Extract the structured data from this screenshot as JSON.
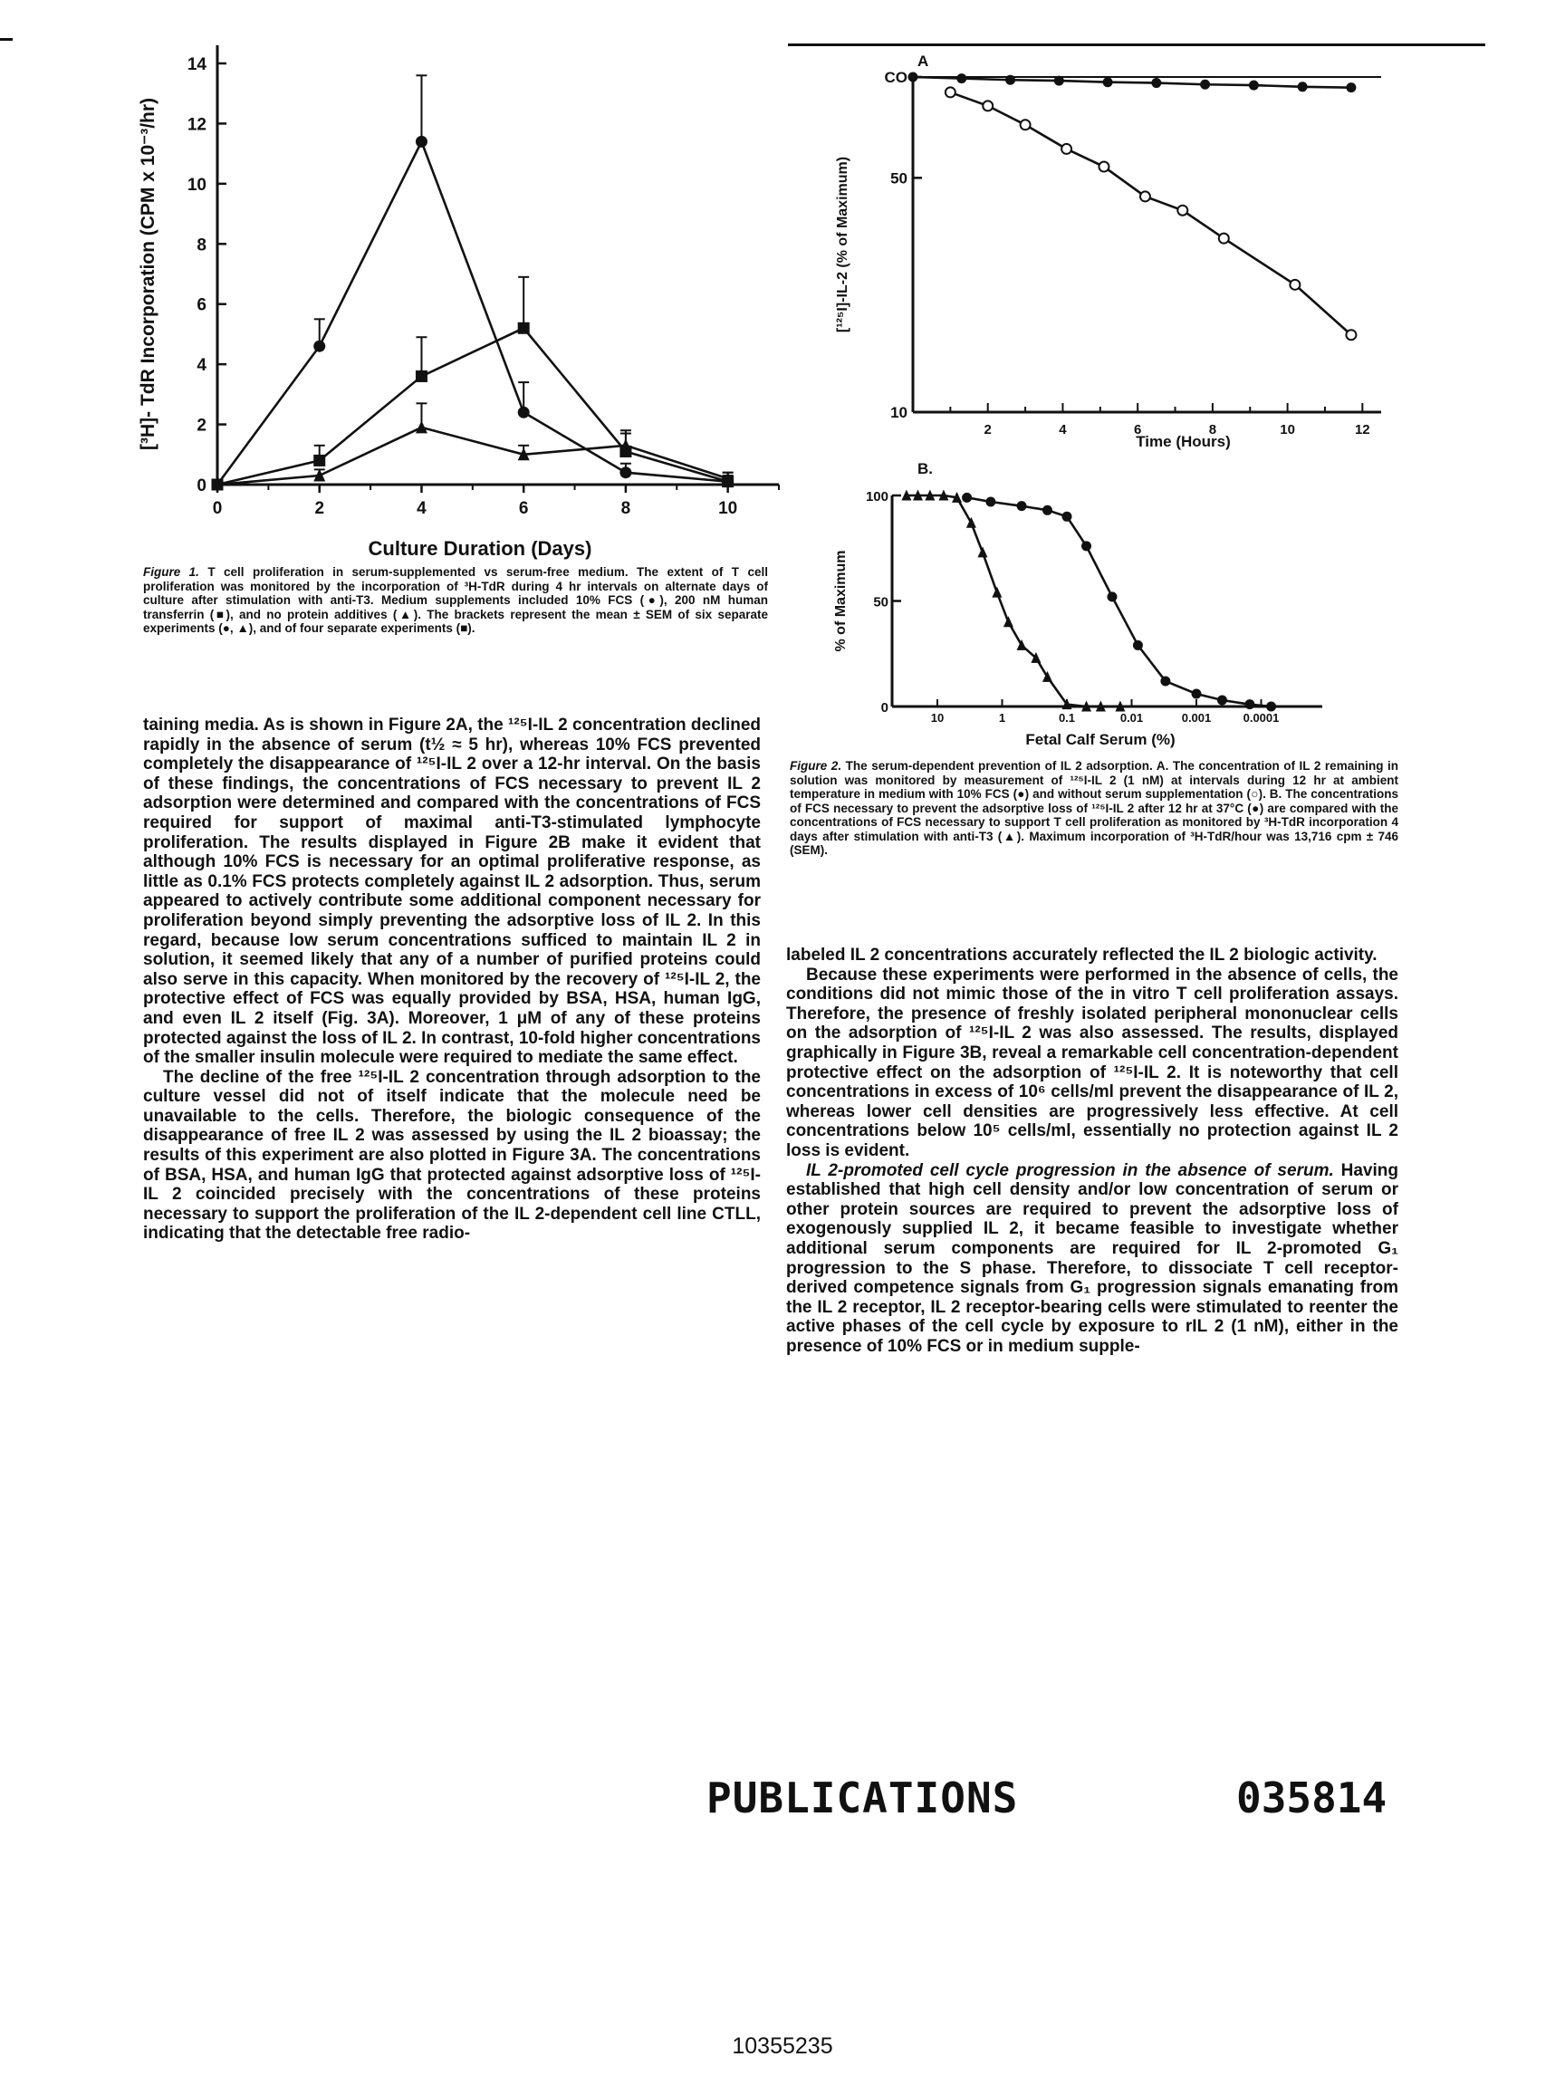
{
  "figure1": {
    "chart_data": {
      "type": "line",
      "xlabel": "Culture Duration (Days)",
      "ylabel": "[³H]- TdR Incorporation (CPM x 10⁻³/hr)",
      "xlim": [
        0,
        11
      ],
      "ylim": [
        0,
        14
      ],
      "x_ticks": [
        "0",
        "2",
        "4",
        "6",
        "8",
        "10"
      ],
      "y_ticks": [
        "0",
        "2",
        "4",
        "6",
        "8",
        "10",
        "12",
        "14"
      ],
      "series": [
        {
          "marker": "filled-circle",
          "x": [
            0,
            2,
            4,
            6,
            8,
            10
          ],
          "y": [
            0,
            4.6,
            11.4,
            2.4,
            0.4,
            0.1
          ],
          "err": [
            0,
            0.9,
            2.2,
            1.0,
            0.3,
            0.3
          ]
        },
        {
          "marker": "filled-square",
          "x": [
            0,
            2,
            4,
            6,
            8,
            10
          ],
          "y": [
            0,
            0.8,
            3.6,
            5.2,
            1.1,
            0.1
          ],
          "err": [
            0,
            0.5,
            1.3,
            1.7,
            0.6,
            0.2
          ]
        },
        {
          "marker": "filled-triangle",
          "x": [
            0,
            2,
            4,
            6,
            8,
            10
          ],
          "y": [
            0,
            0.3,
            1.9,
            1.0,
            1.3,
            0.2
          ],
          "err": [
            0,
            0.2,
            0.8,
            0.3,
            0.5,
            0.2
          ]
        }
      ]
    },
    "caption_label": "Figure 1.",
    "caption_text": "T cell proliferation in serum-supplemented vs serum-free medium. The extent of T cell proliferation was monitored by the incorporation of ³H-TdR during 4 hr intervals on alternate days of culture after stimulation with anti-T3. Medium supplements included 10% FCS (●), 200 nM human transferrin (■), and no protein additives (▲). The brackets represent the mean ± SEM of six separate experiments (●, ▲), and of four separate experiments (■)."
  },
  "figure2a": {
    "chart_data": {
      "type": "line",
      "panel_label": "A",
      "xlabel": "Time (Hours)",
      "ylabel": "[¹²⁵I]-IL-2 (% of Maximum)",
      "yscale": "log",
      "xlim": [
        0,
        12.5
      ],
      "ylim": [
        10,
        100
      ],
      "x_ticks": [
        "2",
        "4",
        "6",
        "8",
        "10",
        "12"
      ],
      "y_ticks": [
        "10",
        "50",
        "CO"
      ],
      "series": [
        {
          "marker": "filled-circle",
          "x": [
            0,
            1.3,
            2.6,
            3.9,
            5.2,
            6.5,
            7.8,
            9.1,
            10.4,
            11.7
          ],
          "y": [
            100,
            99,
            98,
            97.5,
            96.5,
            96,
            95,
            94.5,
            93.5,
            93
          ]
        },
        {
          "marker": "open-circle",
          "x": [
            1,
            2,
            3,
            4.1,
            5.1,
            6.2,
            7.2,
            8.3,
            10.2,
            11.7
          ],
          "y": [
            90,
            82,
            72,
            61,
            54,
            44,
            40,
            33,
            24,
            17
          ]
        }
      ]
    }
  },
  "figure2b": {
    "chart_data": {
      "type": "line",
      "panel_label": "B.",
      "xlabel": "Fetal Calf Serum (%)",
      "ylabel": "% of Maximum",
      "xscale": "log-reversed",
      "ylim": [
        0,
        100
      ],
      "x_ticks": [
        "10",
        "1",
        "0.1",
        "0.01",
        "0.001",
        "0.0001"
      ],
      "y_ticks": [
        "0",
        "50",
        "100"
      ],
      "series": [
        {
          "marker": "filled-triangle",
          "x": [
            30,
            20,
            13,
            8,
            5,
            3,
            2,
            1.2,
            0.8,
            0.5,
            0.3,
            0.2,
            0.1,
            0.05,
            0.03,
            0.015
          ],
          "y": [
            100,
            100,
            100,
            100,
            99,
            87,
            73,
            54,
            40,
            29,
            23,
            14,
            1,
            0,
            0,
            0
          ]
        },
        {
          "marker": "filled-circle",
          "x": [
            3.5,
            1.5,
            0.5,
            0.2,
            0.1,
            0.05,
            0.02,
            0.008,
            0.003,
            0.001,
            0.0004,
            0.00015,
            7e-05
          ],
          "y": [
            99,
            97,
            95,
            93,
            90,
            76,
            52,
            29,
            12,
            6,
            3,
            1,
            0
          ]
        }
      ]
    },
    "caption_label": "Figure 2.",
    "caption_text": "The serum-dependent prevention of IL 2 adsorption. A. The concentration of IL 2 remaining in solution was monitored by measurement of ¹²⁵I-IL 2 (1 nM) at intervals during 12 hr at ambient temperature in medium with 10% FCS (●) and without serum supplementation (○). B. The concentrations of FCS necessary to prevent the adsorptive loss of ¹²⁵I-IL 2 after 12 hr at 37°C (●) are compared with the concentrations of FCS necessary to support T cell proliferation as monitored by ³H-TdR incorporation 4 days after stimulation with anti-T3 (▲). Maximum incorporation of ³H-TdR/hour was 13,716 cpm ± 746 (SEM)."
  },
  "left_column": {
    "p1": "taining media. As is shown in Figure 2A, the ¹²⁵I-IL 2 concentration declined rapidly in the absence of serum (t½ ≈ 5 hr), whereas 10% FCS prevented completely the disappearance of ¹²⁵I-IL 2 over a 12-hr interval. On the basis of these findings, the concentrations of FCS necessary to prevent IL 2 adsorption were determined and compared with the concentrations of FCS required for support of maximal anti-T3-stimulated lymphocyte proliferation. The results displayed in Figure 2B make it evident that although 10% FCS is necessary for an optimal proliferative response, as little as 0.1% FCS protects completely against IL 2 adsorption. Thus, serum appeared to actively contribute some additional component necessary for proliferation beyond simply preventing the adsorptive loss of IL 2. In this regard, because low serum concentrations sufficed to maintain IL 2 in solution, it seemed likely that any of a number of purified proteins could also serve in this capacity. When monitored by the recovery of ¹²⁵I-IL 2, the protective effect of FCS was equally provided by BSA, HSA, human IgG, and even IL 2 itself (Fig. 3A). Moreover, 1 μM of any of these proteins protected against the loss of IL 2. In contrast, 10-fold higher concentrations of the smaller insulin molecule were required to mediate the same effect.",
    "p2": "The decline of the free ¹²⁵I-IL 2 concentration through adsorption to the culture vessel did not of itself indicate that the molecule need be unavailable to the cells. Therefore, the biologic consequence of the disappearance of free IL 2 was assessed by using the IL 2 bioassay; the results of this experiment are also plotted in Figure 3A. The concentrations of BSA, HSA, and human IgG that protected against adsorptive loss of ¹²⁵I-IL 2 coincided precisely with the concentrations of these proteins necessary to support the proliferation of the IL 2-dependent cell line CTLL, indicating that the detectable free radio-"
  },
  "right_column": {
    "p1": "labeled IL 2 concentrations accurately reflected the IL 2 biologic activity.",
    "p2": "Because these experiments were performed in the absence of cells, the conditions did not mimic those of the in vitro T cell proliferation assays. Therefore, the presence of freshly isolated peripheral mononuclear cells on the adsorption of ¹²⁵I-IL 2 was also assessed. The results, displayed graphically in Figure 3B, reveal a remarkable cell concentration-dependent protective effect on the adsorption of ¹²⁵I-IL 2. It is noteworthy that cell concentrations in excess of 10⁶ cells/ml prevent the disappearance of IL 2, whereas lower cell densities are progressively less effective. At cell concentrations below 10⁵ cells/ml, essentially no protection against IL 2 loss is evident.",
    "p3_heading": "IL 2-promoted cell cycle progression in the absence of serum.",
    "p3": "Having established that high cell density and/or low concentration of serum or other protein sources are required to prevent the adsorptive loss of exogenously supplied IL 2, it became feasible to investigate whether additional serum components are required for IL 2-promoted G₁ progression to the S phase. Therefore, to dissociate T cell receptor-derived competence signals from G₁ progression signals emanating from the IL 2 receptor, IL 2 receptor-bearing cells were stimulated to reenter the active phases of the cell cycle by exposure to rIL 2 (1 nM), either in the presence of 10% FCS or in medium supple-"
  },
  "footer": {
    "stamp": "PUBLICATIONS",
    "doc_number": "035814",
    "bates": "10355235"
  }
}
